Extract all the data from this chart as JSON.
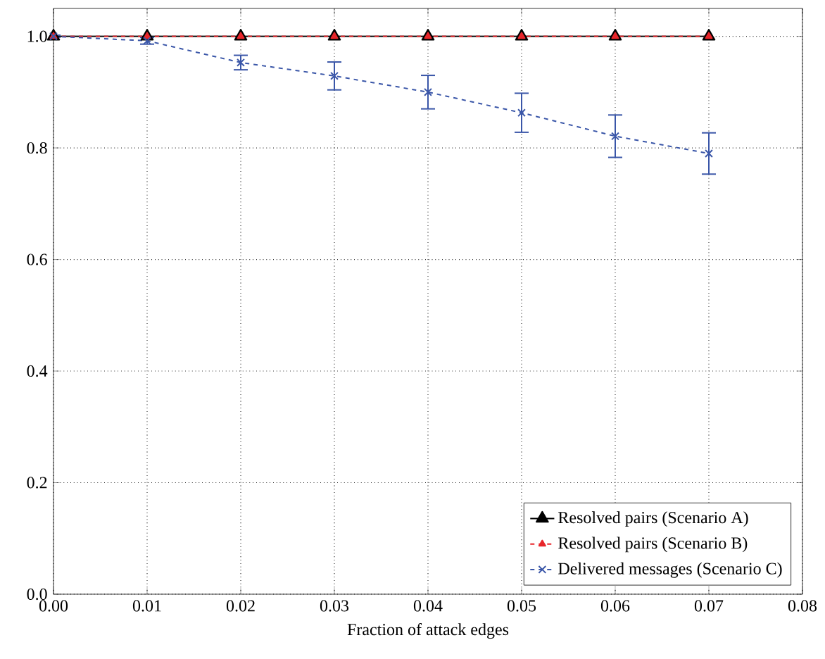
{
  "chart_data": {
    "type": "line",
    "xlabel": "Fraction of attack edges",
    "x": [
      0.0,
      0.01,
      0.02,
      0.03,
      0.04,
      0.05,
      0.06,
      0.07
    ],
    "series": [
      {
        "name": "Resolved pairs (Scenario A)",
        "color": "#000000",
        "values": [
          1.0,
          1.0,
          1.0,
          1.0,
          1.0,
          1.0,
          1.0,
          1.0
        ],
        "marker": "triangle",
        "line_style": "solid"
      },
      {
        "name": "Resolved pairs (Scenario B)",
        "color": "#e8262b",
        "values": [
          1.0,
          1.0,
          1.0,
          1.0,
          1.0,
          1.0,
          1.0,
          1.0
        ],
        "marker": "triangle",
        "line_style": "dashed"
      },
      {
        "name": "Delivered messages (Scenario C)",
        "color": "#3a56a8",
        "values": [
          1.0,
          0.992,
          0.953,
          0.929,
          0.9,
          0.863,
          0.821,
          0.79
        ],
        "errors": [
          0.002,
          0.006,
          0.013,
          0.025,
          0.03,
          0.035,
          0.038,
          0.037
        ],
        "marker": "cross",
        "line_style": "dashed"
      }
    ],
    "xlim": [
      0.0,
      0.08
    ],
    "ylim": [
      0.0,
      1.05
    ],
    "xticks": [
      {
        "value": 0.0,
        "label": "0.00"
      },
      {
        "value": 0.01,
        "label": "0.01"
      },
      {
        "value": 0.02,
        "label": "0.02"
      },
      {
        "value": 0.03,
        "label": "0.03"
      },
      {
        "value": 0.04,
        "label": "0.04"
      },
      {
        "value": 0.05,
        "label": "0.05"
      },
      {
        "value": 0.06,
        "label": "0.06"
      },
      {
        "value": 0.07,
        "label": "0.07"
      },
      {
        "value": 0.08,
        "label": "0.08"
      }
    ],
    "yticks": [
      {
        "value": 0.0,
        "label": "0.0"
      },
      {
        "value": 0.2,
        "label": "0.2"
      },
      {
        "value": 0.4,
        "label": "0.4"
      },
      {
        "value": 0.6,
        "label": "0.6"
      },
      {
        "value": 0.8,
        "label": "0.8"
      },
      {
        "value": 1.0,
        "label": "1.0"
      }
    ],
    "grid": true,
    "legend": "bottom right"
  }
}
